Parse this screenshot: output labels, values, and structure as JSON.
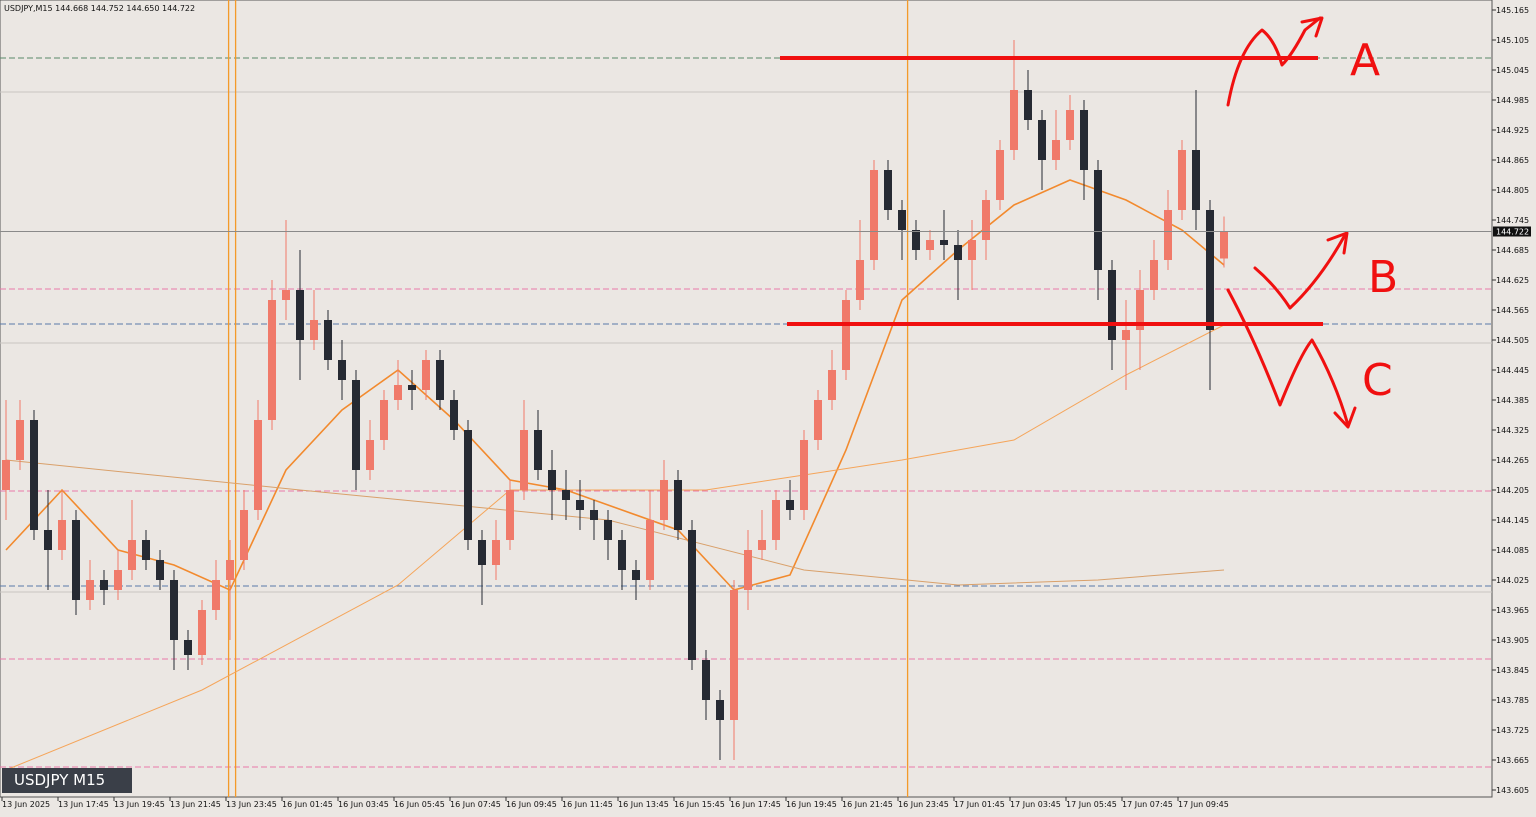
{
  "chart_data": {
    "type": "candlestick",
    "header": "USDJPY,M15  144.668 144.752 144.650 144.722",
    "badge": "USDJPY M15",
    "annotation_labels": [
      "A",
      "B",
      "C"
    ],
    "categories": [
      "13 Jun 2025",
      null,
      null,
      null,
      "13 Jun 17:45",
      null,
      null,
      null,
      "13 Jun 19:45",
      null,
      null,
      null,
      "13 Jun 21:45",
      null,
      null,
      null,
      "13 Jun 23:45",
      null,
      null,
      null,
      "16 Jun 01:45",
      null,
      null,
      null,
      "16 Jun 03:45",
      null,
      null,
      null,
      "16 Jun 05:45",
      null,
      null,
      null,
      "16 Jun 07:45",
      null,
      null,
      null,
      "16 Jun 09:45",
      null,
      null,
      null,
      "16 Jun 11:45",
      null,
      null,
      null,
      "16 Jun 13:45",
      null,
      null,
      null,
      "16 Jun 15:45",
      null,
      null,
      null,
      "16 Jun 17:45",
      null,
      null,
      null,
      "16 Jun 19:45",
      null,
      null,
      null,
      "16 Jun 21:45",
      null,
      null,
      null,
      "16 Jun 23:45",
      null,
      null,
      null,
      "17 Jun 01:45",
      null,
      null,
      null,
      "17 Jun 03:45",
      null,
      null,
      null,
      "17 Jun 05:45",
      null,
      null,
      null,
      "17 Jun 07:45",
      null,
      null,
      null,
      "17 Jun 09:45",
      null,
      null,
      null
    ],
    "open": [
      144.205,
      144.265,
      144.345,
      144.125,
      144.085,
      144.145,
      143.985,
      144.025,
      144.005,
      144.045,
      144.105,
      144.065,
      144.025,
      143.905,
      143.875,
      143.965,
      144.025,
      144.065,
      144.165,
      144.345,
      144.585,
      144.605,
      144.505,
      144.545,
      144.465,
      144.425,
      144.245,
      144.305,
      144.385,
      144.415,
      144.405,
      144.465,
      144.385,
      144.325,
      144.105,
      144.055,
      144.105,
      144.205,
      144.325,
      144.245,
      144.205,
      144.185,
      144.165,
      144.145,
      144.105,
      144.045,
      144.025,
      144.145,
      144.225,
      144.125,
      143.865,
      143.785,
      143.745,
      144.005,
      144.085,
      144.105,
      144.185,
      144.165,
      144.305,
      144.385,
      144.445,
      144.585,
      144.665,
      144.845,
      144.765,
      144.725,
      144.685,
      144.705,
      144.695,
      144.665,
      144.705,
      144.785,
      144.885,
      145.005,
      144.945,
      144.865,
      144.905,
      144.965,
      144.845,
      144.645,
      144.505,
      144.525,
      144.605,
      144.665,
      144.765,
      144.885,
      144.765,
      144.668
    ],
    "high": [
      144.385,
      144.385,
      144.365,
      144.205,
      144.205,
      144.165,
      144.065,
      144.045,
      144.085,
      144.185,
      144.125,
      144.085,
      144.045,
      143.925,
      143.985,
      144.065,
      144.105,
      144.205,
      144.385,
      144.625,
      144.745,
      144.685,
      144.605,
      144.565,
      144.505,
      144.445,
      144.345,
      144.405,
      144.465,
      144.445,
      144.485,
      144.485,
      144.405,
      144.345,
      144.125,
      144.145,
      144.225,
      144.385,
      144.365,
      144.285,
      144.245,
      144.225,
      144.185,
      144.165,
      144.125,
      144.065,
      144.205,
      144.265,
      144.245,
      144.145,
      143.885,
      143.805,
      144.025,
      144.125,
      144.165,
      144.205,
      144.225,
      144.325,
      144.405,
      144.485,
      144.605,
      144.745,
      144.865,
      144.865,
      144.785,
      144.745,
      144.725,
      144.765,
      144.725,
      144.745,
      144.805,
      144.905,
      145.105,
      145.045,
      144.965,
      144.965,
      144.995,
      144.985,
      144.865,
      144.665,
      144.585,
      144.645,
      144.705,
      144.805,
      144.905,
      145.005,
      144.785,
      144.752
    ],
    "low": [
      144.145,
      144.245,
      144.105,
      144.005,
      144.065,
      143.955,
      143.965,
      143.975,
      143.985,
      144.025,
      144.045,
      144.005,
      143.845,
      143.845,
      143.855,
      143.945,
      143.905,
      144.045,
      144.145,
      144.325,
      144.545,
      144.425,
      144.485,
      144.445,
      144.385,
      144.205,
      144.225,
      144.285,
      144.365,
      144.365,
      144.385,
      144.365,
      144.305,
      144.085,
      143.975,
      144.025,
      144.085,
      144.185,
      144.225,
      144.145,
      144.145,
      144.125,
      144.105,
      144.065,
      144.005,
      143.985,
      144.005,
      144.125,
      144.105,
      143.845,
      143.745,
      143.665,
      143.665,
      143.965,
      144.065,
      144.085,
      144.145,
      144.145,
      144.285,
      144.365,
      144.425,
      144.565,
      144.645,
      144.745,
      144.665,
      144.665,
      144.665,
      144.665,
      144.585,
      144.605,
      144.665,
      144.765,
      144.865,
      144.925,
      144.805,
      144.845,
      144.885,
      144.785,
      144.585,
      144.445,
      144.405,
      144.445,
      144.585,
      144.645,
      144.745,
      144.725,
      144.405,
      144.65
    ],
    "close": [
      144.265,
      144.345,
      144.125,
      144.085,
      144.145,
      143.985,
      144.025,
      144.005,
      144.045,
      144.105,
      144.065,
      144.025,
      143.905,
      143.875,
      143.965,
      144.025,
      144.065,
      144.165,
      144.345,
      144.585,
      144.605,
      144.505,
      144.545,
      144.465,
      144.425,
      144.245,
      144.305,
      144.385,
      144.415,
      144.405,
      144.465,
      144.385,
      144.325,
      144.105,
      144.055,
      144.105,
      144.205,
      144.325,
      144.245,
      144.205,
      144.185,
      144.165,
      144.145,
      144.105,
      144.045,
      144.025,
      144.145,
      144.225,
      144.125,
      143.865,
      143.785,
      143.745,
      144.005,
      144.085,
      144.105,
      144.185,
      144.165,
      144.305,
      144.385,
      144.445,
      144.585,
      144.665,
      144.845,
      144.765,
      144.725,
      144.685,
      144.705,
      144.695,
      144.665,
      144.705,
      144.785,
      144.885,
      145.005,
      144.945,
      144.865,
      144.905,
      144.965,
      144.845,
      144.645,
      144.505,
      144.525,
      144.605,
      144.665,
      144.765,
      144.885,
      144.765,
      144.525,
      144.722
    ],
    "up_color": "#f07a6a",
    "down_color": "#262a33",
    "indicators": [
      {
        "color": "#f28a2e",
        "width": 1.6,
        "x": [
          0,
          4,
          8,
          12,
          16,
          20,
          24,
          28,
          32,
          36,
          40,
          44,
          48,
          52,
          56,
          60,
          64,
          68,
          72,
          76,
          80,
          84,
          87
        ],
        "values": [
          144.085,
          144.205,
          144.085,
          144.055,
          144.005,
          144.245,
          144.365,
          144.445,
          144.345,
          144.225,
          144.205,
          144.165,
          144.125,
          144.005,
          144.035,
          144.285,
          144.585,
          144.685,
          144.775,
          144.825,
          144.785,
          144.725,
          144.655
        ]
      },
      {
        "color": "#d9a06a",
        "width": 1,
        "x": [
          0,
          21,
          43,
          57,
          68,
          78,
          87
        ],
        "values": [
          144.265,
          144.205,
          144.145,
          144.045,
          144.015,
          144.025,
          144.045
        ]
      },
      {
        "color": "#f5a55a",
        "width": 1,
        "x": [
          0,
          14,
          28,
          36,
          50,
          57,
          64,
          72,
          80,
          87
        ],
        "values": [
          143.645,
          143.805,
          144.015,
          144.205,
          144.205,
          144.235,
          144.265,
          144.305,
          144.435,
          144.535
        ]
      }
    ],
    "levels": [
      {
        "value": 145.069,
        "color": "#5a8a6a",
        "dash": "6 3"
      },
      {
        "value": 145.001,
        "color": "#c8c4c0",
        "dash": ""
      },
      {
        "value": 144.607,
        "color": "#e87aa8",
        "dash": "6 3"
      },
      {
        "value": 144.537,
        "color": "#5a7aa8",
        "dash": "6 3"
      },
      {
        "value": 144.499,
        "color": "#c8c4c0",
        "dash": ""
      },
      {
        "value": 144.203,
        "color": "#e87aa8",
        "dash": "6 3"
      },
      {
        "value": 144.013,
        "color": "#5a7aa8",
        "dash": "6 3"
      },
      {
        "value": 144.001,
        "color": "#c8c4c0",
        "dash": ""
      },
      {
        "value": 143.867,
        "color": "#e87aa8",
        "dash": "6 3"
      },
      {
        "value": 143.651,
        "color": "#e87aa8",
        "dash": "6 3"
      }
    ],
    "red_levels": [
      145.069,
      144.537
    ],
    "vlines": [
      15.9,
      16.4,
      64.4
    ],
    "ylim": [
      143.591,
      145.185
    ],
    "yticks": [
      145.165,
      145.105,
      145.045,
      144.985,
      144.925,
      144.865,
      144.805,
      144.745,
      144.685,
      144.625,
      144.565,
      144.505,
      144.445,
      144.385,
      144.325,
      144.265,
      144.205,
      144.145,
      144.085,
      144.025,
      143.965,
      143.905,
      143.845,
      143.785,
      143.725,
      143.665,
      143.605
    ]
  }
}
